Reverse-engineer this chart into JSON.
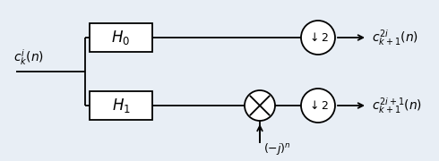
{
  "fig_width": 4.9,
  "fig_height": 1.8,
  "dpi": 100,
  "bg_color": "#e8eef5",
  "input_label": "$c_k^i(n)$",
  "h0_label": "$H_0$",
  "h1_label": "$H_1$",
  "out_top_label": "$c_{k+1}^{2i}(n)$",
  "out_bot_label": "$c_{k+1}^{2i+1}(n)$",
  "mod_label": "$(-j)^n$"
}
